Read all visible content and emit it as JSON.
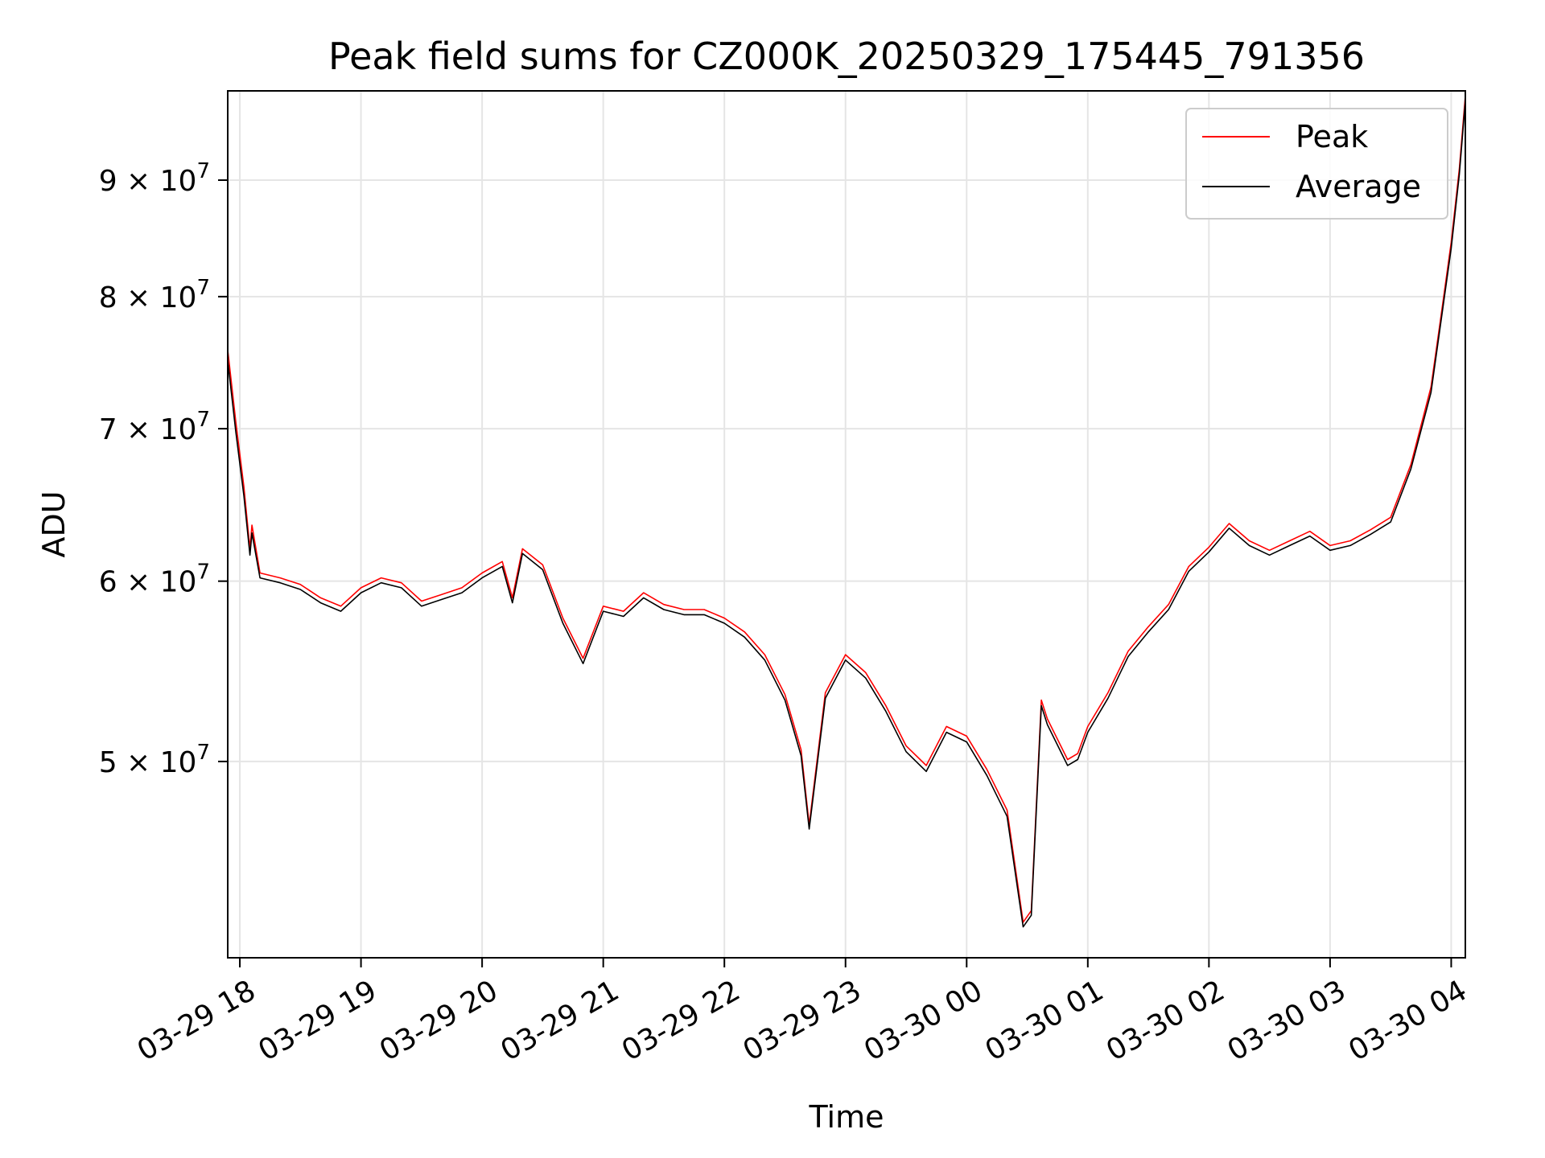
{
  "chart_data": {
    "type": "line",
    "title": "Peak field sums for CZ000K_20250329_175445_791356",
    "xlabel": "Time",
    "ylabel": "ADU",
    "y_scale": "log",
    "ylim": [
      41000000,
      98500000
    ],
    "xlim": [
      "2025-03-29 17:54",
      "2025-03-30 04:07"
    ],
    "grid": true,
    "legend_position": "top-right",
    "x_ticks": [
      {
        "t": "2025-03-29 18:00",
        "label": "03-29 18"
      },
      {
        "t": "2025-03-29 19:00",
        "label": "03-29 19"
      },
      {
        "t": "2025-03-29 20:00",
        "label": "03-29 20"
      },
      {
        "t": "2025-03-29 21:00",
        "label": "03-29 21"
      },
      {
        "t": "2025-03-29 22:00",
        "label": "03-29 22"
      },
      {
        "t": "2025-03-29 23:00",
        "label": "03-29 23"
      },
      {
        "t": "2025-03-30 00:00",
        "label": "03-30 00"
      },
      {
        "t": "2025-03-30 01:00",
        "label": "03-30 01"
      },
      {
        "t": "2025-03-30 02:00",
        "label": "03-30 02"
      },
      {
        "t": "2025-03-30 03:00",
        "label": "03-30 03"
      },
      {
        "t": "2025-03-30 04:00",
        "label": "03-30 04"
      }
    ],
    "y_ticks": [
      {
        "value": 50000000,
        "mantissa": "5",
        "exponent": "7"
      },
      {
        "value": 60000000,
        "mantissa": "6",
        "exponent": "7"
      },
      {
        "value": 70000000,
        "mantissa": "7",
        "exponent": "7"
      },
      {
        "value": 80000000,
        "mantissa": "8",
        "exponent": "7"
      },
      {
        "value": 90000000,
        "mantissa": "9",
        "exponent": "7"
      }
    ],
    "series": [
      {
        "name": "Peak",
        "color": "#ff0000",
        "x": [
          "2025-03-29 17:54",
          "2025-03-29 17:58",
          "2025-03-29 18:02",
          "2025-03-29 18:05",
          "2025-03-29 18:06",
          "2025-03-29 18:10",
          "2025-03-29 18:20",
          "2025-03-29 18:30",
          "2025-03-29 18:40",
          "2025-03-29 18:50",
          "2025-03-29 19:00",
          "2025-03-29 19:10",
          "2025-03-29 19:20",
          "2025-03-29 19:30",
          "2025-03-29 19:40",
          "2025-03-29 19:50",
          "2025-03-29 20:00",
          "2025-03-29 20:10",
          "2025-03-29 20:15",
          "2025-03-29 20:20",
          "2025-03-29 20:30",
          "2025-03-29 20:40",
          "2025-03-29 20:50",
          "2025-03-29 21:00",
          "2025-03-29 21:10",
          "2025-03-29 21:20",
          "2025-03-29 21:30",
          "2025-03-29 21:40",
          "2025-03-29 21:50",
          "2025-03-29 22:00",
          "2025-03-29 22:10",
          "2025-03-29 22:20",
          "2025-03-29 22:30",
          "2025-03-29 22:38",
          "2025-03-29 22:42",
          "2025-03-29 22:50",
          "2025-03-29 23:00",
          "2025-03-29 23:10",
          "2025-03-29 23:20",
          "2025-03-29 23:30",
          "2025-03-29 23:40",
          "2025-03-29 23:50",
          "2025-03-30 00:00",
          "2025-03-30 00:10",
          "2025-03-30 00:20",
          "2025-03-30 00:28",
          "2025-03-30 00:32",
          "2025-03-30 00:37",
          "2025-03-30 00:40",
          "2025-03-30 00:50",
          "2025-03-30 00:55",
          "2025-03-30 01:00",
          "2025-03-30 01:10",
          "2025-03-30 01:20",
          "2025-03-30 01:30",
          "2025-03-30 01:40",
          "2025-03-30 01:50",
          "2025-03-30 02:00",
          "2025-03-30 02:10",
          "2025-03-30 02:20",
          "2025-03-30 02:30",
          "2025-03-30 02:40",
          "2025-03-30 02:50",
          "2025-03-30 03:00",
          "2025-03-30 03:10",
          "2025-03-30 03:20",
          "2025-03-30 03:30",
          "2025-03-30 03:40",
          "2025-03-30 03:50",
          "2025-03-30 03:55",
          "2025-03-30 04:00",
          "2025-03-30 04:04",
          "2025-03-30 04:07"
        ],
        "values": [
          75800000,
          70500000,
          66000000,
          62000000,
          63500000,
          60500000,
          60200000,
          59800000,
          59000000,
          58500000,
          59600000,
          60200000,
          59900000,
          58800000,
          59200000,
          59600000,
          60500000,
          61200000,
          59000000,
          62000000,
          61000000,
          57800000,
          55500000,
          58500000,
          58200000,
          59300000,
          58600000,
          58300000,
          58300000,
          57800000,
          57000000,
          55700000,
          53500000,
          50600000,
          46900000,
          53600000,
          55700000,
          54700000,
          52900000,
          50800000,
          49800000,
          51800000,
          51300000,
          49600000,
          47600000,
          42500000,
          43000000,
          53200000,
          52200000,
          50100000,
          50400000,
          51800000,
          53600000,
          55900000,
          57300000,
          58600000,
          60900000,
          62100000,
          63600000,
          62500000,
          61900000,
          62500000,
          63100000,
          62200000,
          62500000,
          63200000,
          64000000,
          67500000,
          73000000,
          78500000,
          84500000,
          91000000,
          98000000
        ]
      },
      {
        "name": "Average",
        "color": "#000000",
        "x": [
          "2025-03-29 17:54",
          "2025-03-29 17:58",
          "2025-03-29 18:02",
          "2025-03-29 18:05",
          "2025-03-29 18:06",
          "2025-03-29 18:10",
          "2025-03-29 18:20",
          "2025-03-29 18:30",
          "2025-03-29 18:40",
          "2025-03-29 18:50",
          "2025-03-29 19:00",
          "2025-03-29 19:10",
          "2025-03-29 19:20",
          "2025-03-29 19:30",
          "2025-03-29 19:40",
          "2025-03-29 19:50",
          "2025-03-29 20:00",
          "2025-03-29 20:10",
          "2025-03-29 20:15",
          "2025-03-29 20:20",
          "2025-03-29 20:30",
          "2025-03-29 20:40",
          "2025-03-29 20:50",
          "2025-03-29 21:00",
          "2025-03-29 21:10",
          "2025-03-29 21:20",
          "2025-03-29 21:30",
          "2025-03-29 21:40",
          "2025-03-29 21:50",
          "2025-03-29 22:00",
          "2025-03-29 22:10",
          "2025-03-29 22:20",
          "2025-03-29 22:30",
          "2025-03-29 22:38",
          "2025-03-29 22:42",
          "2025-03-29 22:50",
          "2025-03-29 23:00",
          "2025-03-29 23:10",
          "2025-03-29 23:20",
          "2025-03-29 23:30",
          "2025-03-29 23:40",
          "2025-03-29 23:50",
          "2025-03-30 00:00",
          "2025-03-30 00:10",
          "2025-03-30 00:20",
          "2025-03-30 00:28",
          "2025-03-30 00:32",
          "2025-03-30 00:37",
          "2025-03-30 00:40",
          "2025-03-30 00:50",
          "2025-03-30 00:55",
          "2025-03-30 01:00",
          "2025-03-30 01:10",
          "2025-03-30 01:20",
          "2025-03-30 01:30",
          "2025-03-30 01:40",
          "2025-03-30 01:50",
          "2025-03-30 02:00",
          "2025-03-30 02:10",
          "2025-03-30 02:20",
          "2025-03-30 02:30",
          "2025-03-30 02:40",
          "2025-03-30 02:50",
          "2025-03-30 03:00",
          "2025-03-30 03:10",
          "2025-03-30 03:20",
          "2025-03-30 03:30",
          "2025-03-30 03:40",
          "2025-03-30 03:50",
          "2025-03-30 03:55",
          "2025-03-30 04:00",
          "2025-03-30 04:04",
          "2025-03-30 04:07"
        ],
        "values": [
          75000000,
          69800000,
          65400000,
          61600000,
          63000000,
          60200000,
          59900000,
          59500000,
          58700000,
          58200000,
          59300000,
          59900000,
          59600000,
          58500000,
          58900000,
          59300000,
          60200000,
          60900000,
          58700000,
          61700000,
          60700000,
          57500000,
          55200000,
          58200000,
          57900000,
          59000000,
          58300000,
          58000000,
          58000000,
          57500000,
          56700000,
          55400000,
          53200000,
          50300000,
          46700000,
          53300000,
          55400000,
          54400000,
          52600000,
          50500000,
          49500000,
          51500000,
          51000000,
          49300000,
          47300000,
          42300000,
          42800000,
          52900000,
          51900000,
          49800000,
          50100000,
          51500000,
          53300000,
          55600000,
          57000000,
          58300000,
          60600000,
          61800000,
          63300000,
          62200000,
          61600000,
          62200000,
          62800000,
          61900000,
          62200000,
          62900000,
          63700000,
          67200000,
          72600000,
          78100000,
          84000000,
          90500000,
          97500000
        ]
      }
    ]
  }
}
